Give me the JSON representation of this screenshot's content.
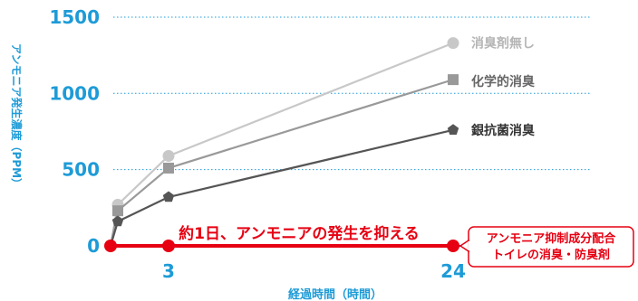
{
  "chart_data": {
    "type": "line",
    "xlabel": "経過時間（時間）",
    "ylabel": "アンモニア発生濃度（PPM）",
    "x": [
      0,
      1,
      3,
      24
    ],
    "x_ticks": [
      "3",
      "24"
    ],
    "y_ticks": [
      "0",
      "500",
      "1000",
      "1500"
    ],
    "ylim": [
      0,
      1500
    ],
    "grid": "horizontal dotted",
    "series": [
      {
        "name": "消臭剤無し",
        "marker": "circle",
        "color": "#c8c8c8",
        "values": [
          0,
          270,
          590,
          1330
        ]
      },
      {
        "name": "化学的消臭",
        "marker": "square",
        "color": "#999999",
        "values": [
          0,
          230,
          510,
          1090
        ]
      },
      {
        "name": "銀抗菌消臭",
        "marker": "pentagon",
        "color": "#555555",
        "values": [
          0,
          160,
          320,
          760
        ]
      },
      {
        "name": "アンモニア抑制成分配合\nトイレの消臭・防臭剤",
        "marker": "circle",
        "color": "#e60012",
        "values": [
          0,
          0,
          0,
          0
        ]
      }
    ],
    "annotation": "約1日、アンモニアの発生を抑える"
  },
  "colors": {
    "axis_text": "#1e9bd7",
    "grid": "#1e9bd7",
    "highlight": "#e60012",
    "baseline": "#1e4fb4"
  }
}
